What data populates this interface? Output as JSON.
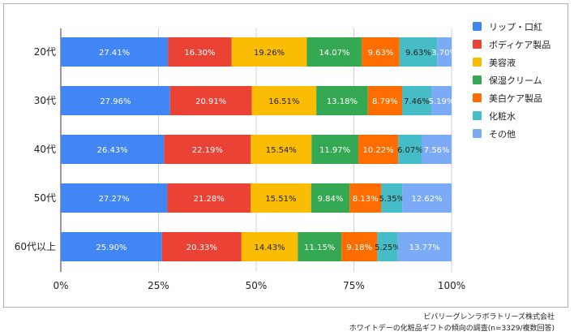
{
  "chart_data": {
    "type": "bar",
    "orientation": "horizontal",
    "stacked": true,
    "categories": [
      "20代",
      "30代",
      "40代",
      "50代",
      "60代以上"
    ],
    "xlim": [
      0,
      100
    ],
    "x_ticks": [
      "0%",
      "25%",
      "50%",
      "75%",
      "100%"
    ],
    "grid": true,
    "legend_position": "right",
    "series": [
      {
        "name": "リップ・口紅",
        "color": "#4285f4",
        "values": [
          27.41,
          27.96,
          26.43,
          27.27,
          25.9
        ],
        "labels": [
          "27.41%",
          "27.96%",
          "26.43%",
          "27.27%",
          "25.90%"
        ]
      },
      {
        "name": "ボディケア製品",
        "color": "#ea4335",
        "values": [
          16.3,
          20.91,
          22.19,
          21.28,
          20.33
        ],
        "labels": [
          "16.30%",
          "20.91%",
          "22.19%",
          "21.28%",
          "20.33%"
        ]
      },
      {
        "name": "美容液",
        "color": "#fbbc04",
        "values": [
          19.26,
          16.51,
          15.54,
          15.51,
          14.43
        ],
        "labels": [
          "19.26%",
          "16.51%",
          "15.54%",
          "15.51%",
          "14.43%"
        ]
      },
      {
        "name": "保湿クリーム",
        "color": "#34a853",
        "values": [
          14.07,
          13.18,
          11.97,
          9.84,
          11.15
        ],
        "labels": [
          "14.07%",
          "13.18%",
          "11.97%",
          "9.84%",
          "11.15%"
        ]
      },
      {
        "name": "美白ケア製品",
        "color": "#ff6d01",
        "values": [
          9.63,
          8.79,
          10.22,
          8.13,
          9.18
        ],
        "labels": [
          "9.63%",
          "8.79%",
          "10.22%",
          "8.13%",
          "9.18%"
        ]
      },
      {
        "name": "化粧水",
        "color": "#46bdc6",
        "values": [
          9.63,
          7.46,
          6.07,
          5.35,
          5.25
        ],
        "labels": [
          "9.63%",
          "7.46%",
          "6.07%",
          "5.35%",
          "5.25%"
        ]
      },
      {
        "name": "その他",
        "color": "#7baaf7",
        "values": [
          3.7,
          5.19,
          7.56,
          12.62,
          13.77
        ],
        "labels": [
          "3.70%",
          "5.19%",
          "7.56%",
          "12.62%",
          "13.77%"
        ]
      }
    ]
  },
  "source": {
    "organization": "ビバリーグレンラボラトリーズ株式会社",
    "survey": "ホワイトデーの化粧品ギフトの傾向の調査(n=3329/複数回答)"
  }
}
